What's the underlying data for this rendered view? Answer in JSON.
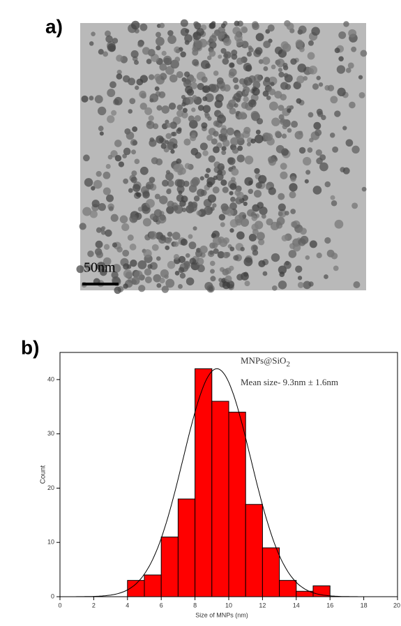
{
  "panel_a": {
    "label": "a)",
    "scale_bar": "50nm"
  },
  "panel_b": {
    "label": "b)"
  },
  "chart_data": {
    "type": "histogram",
    "bins": [
      4,
      5,
      6,
      7,
      8,
      9,
      10,
      11,
      12,
      13,
      14,
      15,
      16
    ],
    "values": [
      3,
      4,
      11,
      18,
      42,
      36,
      34,
      17,
      9,
      3,
      1,
      2
    ],
    "color": "#ff0000",
    "xlim": [
      0,
      20
    ],
    "xticks": [
      0,
      2,
      4,
      6,
      8,
      10,
      12,
      14,
      16,
      18,
      20
    ],
    "ylim": [
      0,
      45
    ],
    "yticks": [
      0,
      10,
      20,
      30,
      40
    ],
    "x_label": "Size of MNPs (nm)",
    "y_label": "Count",
    "fit": {
      "center": 9.3,
      "width": 2.0,
      "height": 42
    },
    "annotations": {
      "name": "MNPs@SiO",
      "name_subscript": "2",
      "stats": "Mean size- 9.3nm ± 1.6nm"
    }
  }
}
